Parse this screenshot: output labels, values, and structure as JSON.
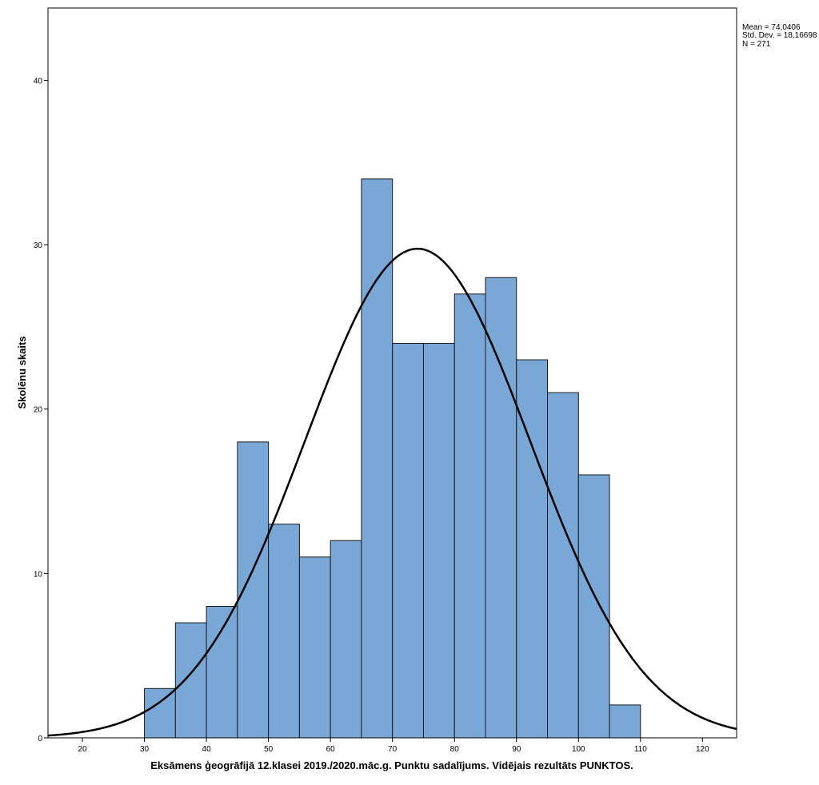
{
  "chart_data": {
    "type": "bar",
    "subtype": "histogram",
    "xlabel": "Eksāmens ģeogrāfijā 12.klasei 2019./2020.māc.g. Punktu sadalījums. Vidējais rezultāts PUNKTOS.",
    "ylabel": "Skolēnu skaits",
    "xlim": [
      14.45,
      125.5
    ],
    "ylim": [
      0,
      44.4
    ],
    "xticks": [
      20,
      30,
      40,
      50,
      60,
      70,
      80,
      90,
      100,
      110,
      120
    ],
    "yticks": [
      0,
      10,
      20,
      30,
      40
    ],
    "bin_width": 5,
    "bins": [
      {
        "start": 30,
        "end": 35,
        "count": 3
      },
      {
        "start": 35,
        "end": 40,
        "count": 7
      },
      {
        "start": 40,
        "end": 45,
        "count": 8
      },
      {
        "start": 45,
        "end": 50,
        "count": 18
      },
      {
        "start": 50,
        "end": 55,
        "count": 13
      },
      {
        "start": 55,
        "end": 60,
        "count": 11
      },
      {
        "start": 60,
        "end": 65,
        "count": 12
      },
      {
        "start": 65,
        "end": 70,
        "count": 34
      },
      {
        "start": 70,
        "end": 75,
        "count": 24
      },
      {
        "start": 75,
        "end": 80,
        "count": 24
      },
      {
        "start": 80,
        "end": 85,
        "count": 27
      },
      {
        "start": 85,
        "end": 90,
        "count": 28
      },
      {
        "start": 90,
        "end": 95,
        "count": 23
      },
      {
        "start": 95,
        "end": 100,
        "count": 21
      },
      {
        "start": 100,
        "end": 105,
        "count": 16
      },
      {
        "start": 105,
        "end": 110,
        "count": 2
      }
    ],
    "normal_curve": {
      "mean": 74.0406,
      "std": 18.16698,
      "n": 271
    },
    "stats": {
      "mean_label": "Mean = 74,0406",
      "std_label": "Std. Dev. = 18,16698",
      "n_label": "N = 271"
    },
    "colors": {
      "bar": "#79a7d6",
      "bar_edge": "#1a1a1a",
      "curve": "#000000"
    }
  }
}
